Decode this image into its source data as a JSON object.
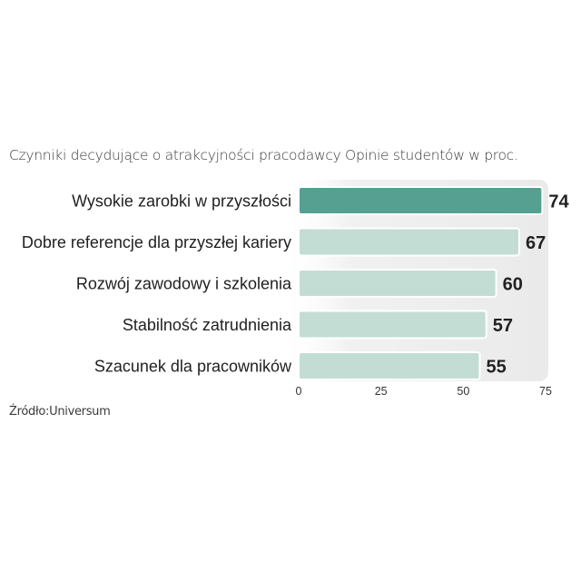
{
  "chart_data": {
    "type": "bar",
    "orientation": "horizontal",
    "title": "Czynniki decydujące o atrakcyjności pracodawcy Opinie studentów w proc.",
    "categories": [
      "Wysokie zarobki w przyszłości",
      "Dobre referencje dla przyszłej kariery",
      "Rozwój zawodowy i szkolenia",
      "Stabilność zatrudnienia",
      "Szacunek dla pracowników"
    ],
    "values": [
      74,
      67,
      60,
      57,
      55
    ],
    "value_labels": [
      "74",
      "67",
      "60",
      "57",
      "55"
    ],
    "xlim": [
      0,
      75
    ],
    "xticks": [
      0,
      25,
      50,
      75
    ],
    "xtick_labels": [
      "0",
      "25",
      "50",
      "75"
    ],
    "grid": false,
    "legend": false,
    "colors": {
      "highlight_bar": "#55a090",
      "bar": "#c3ddd5",
      "plot_background": "#eeeeee",
      "bar_outline": "#ffffff"
    }
  },
  "source": "Źródło:Universum"
}
